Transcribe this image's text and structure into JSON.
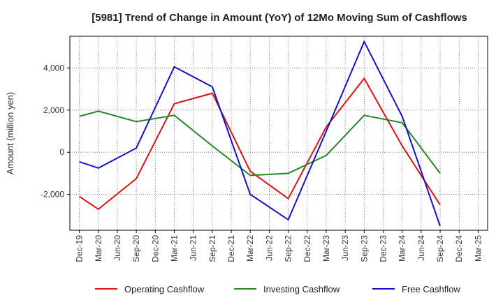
{
  "chart_data": {
    "type": "line",
    "title": "[5981]  Trend of Change in Amount (YoY) of 12Mo Moving Sum of Cashflows",
    "xlabel": "",
    "ylabel": "Amount (million yen)",
    "ylim": [
      -3700,
      5500
    ],
    "yticks": [
      -2000,
      0,
      2000,
      4000
    ],
    "ytick_labels": [
      "-2,000",
      "0",
      "2,000",
      "4,000"
    ],
    "categories": [
      "Dec-19",
      "Mar-20",
      "Jun-20",
      "Sep-20",
      "Dec-20",
      "Mar-21",
      "Jun-21",
      "Sep-21",
      "Dec-21",
      "Mar-22",
      "Jun-22",
      "Sep-22",
      "Dec-22",
      "Mar-23",
      "Jun-23",
      "Sep-23",
      "Dec-23",
      "Mar-24",
      "Jun-24",
      "Sep-24",
      "Dec-24",
      "Mar-25"
    ],
    "grid": true,
    "legend_position": "bottom",
    "series": [
      {
        "name": "Operating Cashflow",
        "color": "#dd1111",
        "points": [
          [
            0,
            -2100
          ],
          [
            1,
            -2700
          ],
          [
            3,
            -1250
          ],
          [
            5,
            2300
          ],
          [
            7,
            2800
          ],
          [
            9,
            -900
          ],
          [
            11,
            -2200
          ],
          [
            13,
            1200
          ],
          [
            15,
            3500
          ],
          [
            17,
            300
          ],
          [
            19,
            -2500
          ]
        ]
      },
      {
        "name": "Investing Cashflow",
        "color": "#228822",
        "points": [
          [
            0,
            1700
          ],
          [
            1,
            1950
          ],
          [
            3,
            1450
          ],
          [
            5,
            1750
          ],
          [
            7,
            300
          ],
          [
            9,
            -1100
          ],
          [
            11,
            -1000
          ],
          [
            13,
            -150
          ],
          [
            15,
            1750
          ],
          [
            17,
            1400
          ],
          [
            19,
            -1000
          ]
        ]
      },
      {
        "name": "Free Cashflow",
        "color": "#1111cc",
        "points": [
          [
            0,
            -450
          ],
          [
            1,
            -750
          ],
          [
            3,
            200
          ],
          [
            5,
            4050
          ],
          [
            7,
            3100
          ],
          [
            9,
            -2000
          ],
          [
            11,
            -3200
          ],
          [
            13,
            1000
          ],
          [
            15,
            5250
          ],
          [
            17,
            1700
          ],
          [
            19,
            -3500
          ]
        ]
      }
    ]
  }
}
